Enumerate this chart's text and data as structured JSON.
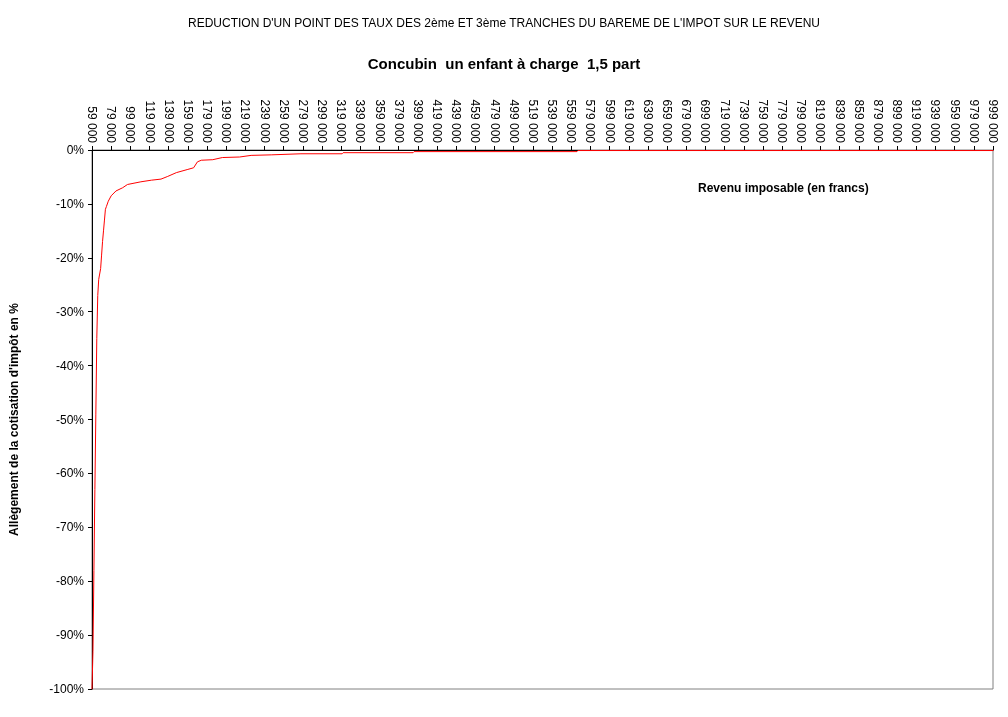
{
  "chart_data": {
    "type": "line",
    "title": "REDUCTION D'UN POINT DES TAUX DES 2ème ET 3ème TRANCHES DU BAREME DE L'IMPOT SUR LE REVENU",
    "subtitle": "Concubin  un enfant à charge  1,5 part",
    "xlabel": "Revenu imposable (en francs)",
    "ylabel": "Allègement de la cotisation d'impôt en %",
    "x": [
      59000,
      60000,
      61000,
      62000,
      63000,
      64000,
      65000,
      66000,
      68000,
      69000,
      70000,
      71000,
      72000,
      73000,
      74000,
      76000,
      79000,
      84000,
      91000,
      96000,
      110000,
      121000,
      131000,
      138000,
      147000,
      159000,
      165000,
      169000,
      173000,
      185000,
      195000,
      213000,
      225000,
      246000,
      277000,
      320000,
      321000,
      394000,
      395000,
      565000,
      566000,
      999000
    ],
    "series": [
      {
        "color": "#ff0000",
        "values": [
          -100,
          -93,
          -78,
          -63,
          -49,
          -35,
          -27,
          -24,
          -22,
          -19.5,
          -17,
          -15,
          -13,
          -11,
          -10.5,
          -9.5,
          -8.5,
          -7.6,
          -7.0,
          -6.4,
          -5.9,
          -5.6,
          -5.4,
          -4.9,
          -4.2,
          -3.6,
          -3.3,
          -2.2,
          -1.9,
          -1.8,
          -1.4,
          -1.3,
          -1.0,
          -0.9,
          -0.7,
          -0.7,
          -0.5,
          -0.5,
          -0.3,
          -0.3,
          -0.1,
          -0.1
        ]
      }
    ],
    "xlim": [
      59000,
      999000
    ],
    "xticks": [
      {
        "value": 59000,
        "label": "59 000"
      },
      {
        "value": 79000,
        "label": "79 000"
      },
      {
        "value": 99000,
        "label": "99 000"
      },
      {
        "value": 119000,
        "label": "119 000"
      },
      {
        "value": 139000,
        "label": "139 000"
      },
      {
        "value": 159000,
        "label": "159 000"
      },
      {
        "value": 179000,
        "label": "179 000"
      },
      {
        "value": 199000,
        "label": "199 000"
      },
      {
        "value": 219000,
        "label": "219 000"
      },
      {
        "value": 239000,
        "label": "239 000"
      },
      {
        "value": 259000,
        "label": "259 000"
      },
      {
        "value": 279000,
        "label": "279 000"
      },
      {
        "value": 299000,
        "label": "299 000"
      },
      {
        "value": 319000,
        "label": "319 000"
      },
      {
        "value": 339000,
        "label": "339 000"
      },
      {
        "value": 359000,
        "label": "359 000"
      },
      {
        "value": 379000,
        "label": "379 000"
      },
      {
        "value": 399000,
        "label": "399 000"
      },
      {
        "value": 419000,
        "label": "419 000"
      },
      {
        "value": 439000,
        "label": "439 000"
      },
      {
        "value": 459000,
        "label": "459 000"
      },
      {
        "value": 479000,
        "label": "479 000"
      },
      {
        "value": 499000,
        "label": "499 000"
      },
      {
        "value": 519000,
        "label": "519 000"
      },
      {
        "value": 539000,
        "label": "539 000"
      },
      {
        "value": 559000,
        "label": "559 000"
      },
      {
        "value": 579000,
        "label": "579 000"
      },
      {
        "value": 599000,
        "label": "599 000"
      },
      {
        "value": 619000,
        "label": "619 000"
      },
      {
        "value": 639000,
        "label": "639 000"
      },
      {
        "value": 659000,
        "label": "659 000"
      },
      {
        "value": 679000,
        "label": "679 000"
      },
      {
        "value": 699000,
        "label": "699 000"
      },
      {
        "value": 719000,
        "label": "719 000"
      },
      {
        "value": 739000,
        "label": "739 000"
      },
      {
        "value": 759000,
        "label": "759 000"
      },
      {
        "value": 779000,
        "label": "779 000"
      },
      {
        "value": 799000,
        "label": "799 000"
      },
      {
        "value": 819000,
        "label": "819 000"
      },
      {
        "value": 839000,
        "label": "839 000"
      },
      {
        "value": 859000,
        "label": "859 000"
      },
      {
        "value": 879000,
        "label": "879 000"
      },
      {
        "value": 899000,
        "label": "899 000"
      },
      {
        "value": 919000,
        "label": "919 000"
      },
      {
        "value": 939000,
        "label": "939 000"
      },
      {
        "value": 959000,
        "label": "959 000"
      },
      {
        "value": 979000,
        "label": "979 000"
      },
      {
        "value": 999000,
        "label": "999 000"
      }
    ],
    "ylim": [
      -100,
      0
    ],
    "yticks": [
      {
        "value": 0,
        "label": "0%"
      },
      {
        "value": -10,
        "label": "-10%"
      },
      {
        "value": -20,
        "label": "-20%"
      },
      {
        "value": -30,
        "label": "-30%"
      },
      {
        "value": -40,
        "label": "-40%"
      },
      {
        "value": -50,
        "label": "-50%"
      },
      {
        "value": -60,
        "label": "-60%"
      },
      {
        "value": -70,
        "label": "-70%"
      },
      {
        "value": -80,
        "label": "-80%"
      },
      {
        "value": -90,
        "label": "-90%"
      },
      {
        "value": -100,
        "label": "-100%"
      }
    ],
    "marker": "none",
    "line_style": "solid"
  }
}
